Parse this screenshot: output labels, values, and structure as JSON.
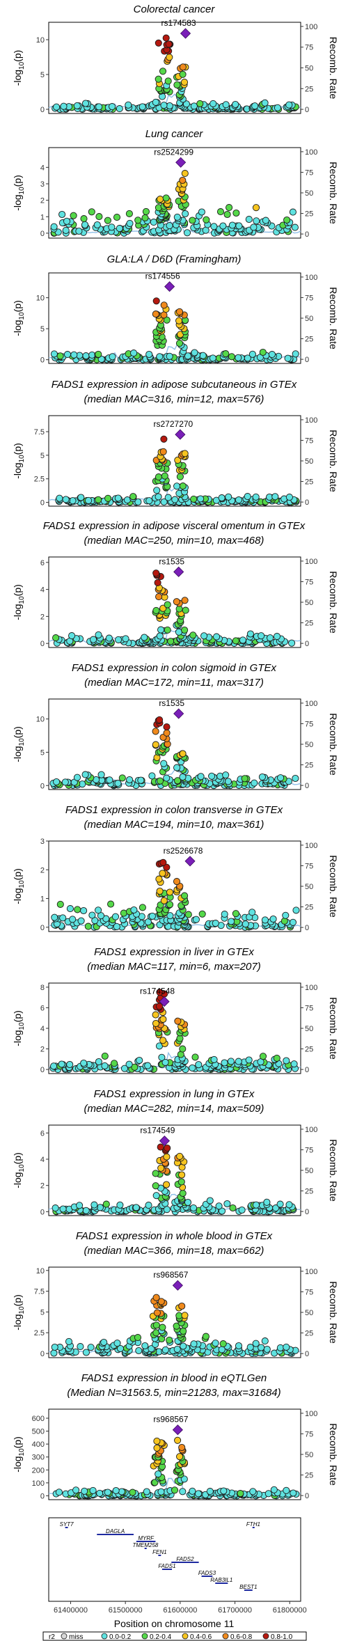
{
  "xaxis": {
    "label": "Position on chromosome 11",
    "ticks": [
      61400000,
      61500000,
      61600000,
      61700000,
      61800000
    ],
    "range": [
      61360000,
      61820000
    ]
  },
  "ylabel_left": "-log",
  "ylabel_left_sub": "10",
  "ylabel_left_tail": "(p)",
  "ylabel_right": "Recomb. Rate",
  "recomb_ticks": [
    0,
    25,
    50,
    75,
    100
  ],
  "legend": {
    "title": "r2",
    "items": [
      {
        "label": "miss",
        "color": "#d9d9d9"
      },
      {
        "label": "0.0-0.2",
        "color": "#5fe2e0"
      },
      {
        "label": "0.2-0.4",
        "color": "#55d84a"
      },
      {
        "label": "0.4-0.6",
        "color": "#f7c520"
      },
      {
        "label": "0.6-0.8",
        "color": "#f08a1c"
      },
      {
        "label": "0.8-1.0",
        "color": "#b5190f"
      }
    ]
  },
  "colors": {
    "lead": "#7a1fb8",
    "recomb_line": "#8fbfe8",
    "gene": "#1e2aa0"
  },
  "genes": [
    {
      "name": "SYT7",
      "start": 61390000,
      "end": 61395000,
      "row": 0
    },
    {
      "name": "FTH1",
      "start": 61732000,
      "end": 61735000,
      "row": 0
    },
    {
      "name": "DAGLA",
      "start": 61448000,
      "end": 61515000,
      "row": 1
    },
    {
      "name": "MYRF",
      "start": 61520000,
      "end": 61555000,
      "row": 2
    },
    {
      "name": "TMEM258",
      "start": 61535000,
      "end": 61538000,
      "row": 3
    },
    {
      "name": "FEN1",
      "start": 61560000,
      "end": 61565000,
      "row": 4
    },
    {
      "name": "FADS2",
      "start": 61584000,
      "end": 61634000,
      "row": 5
    },
    {
      "name": "FADS1",
      "start": 61567000,
      "end": 61585000,
      "row": 6
    },
    {
      "name": "FADS3",
      "start": 61639000,
      "end": 61659000,
      "row": 7
    },
    {
      "name": "RAB3IL1",
      "start": 61664000,
      "end": 61687000,
      "row": 8
    },
    {
      "name": "BEST1",
      "start": 61717000,
      "end": 61732000,
      "row": 9
    }
  ],
  "chart_data": [
    {
      "type": "scatter",
      "title": "Colorectal cancer",
      "subtitle": "",
      "lead_snp": "rs174583",
      "lead_pos": 61609750,
      "lead_y": 10.9,
      "ylim": [
        -0.6,
        12.5
      ],
      "yticks": [
        0,
        5,
        10
      ]
    },
    {
      "type": "scatter",
      "title": "Lung cancer",
      "subtitle": "",
      "lead_snp": "rs2524299",
      "lead_pos": 61601000,
      "lead_y": 4.3,
      "ylim": [
        -0.3,
        5.2
      ],
      "yticks": [
        0,
        1,
        2,
        3,
        4
      ]
    },
    {
      "type": "scatter",
      "title": "GLA:LA / D6D (Framingham)",
      "subtitle": "",
      "lead_snp": "rs174556",
      "lead_pos": 61580635,
      "lead_y": 11.8,
      "ylim": [
        -0.6,
        14.0
      ],
      "yticks": [
        0,
        5,
        10
      ]
    },
    {
      "type": "scatter",
      "title": "FADS1 expression in adipose subcutaneous in GTEx",
      "subtitle": "(median MAC=316, min=12, max=576)",
      "lead_snp": "rs2727270",
      "lead_pos": 61600000,
      "lead_y": 7.2,
      "ylim": [
        -0.4,
        9.2
      ],
      "yticks": [
        0,
        2.5,
        5,
        7.5
      ]
    },
    {
      "type": "scatter",
      "title": "FADS1 expression in adipose visceral omentum in GTEx",
      "subtitle": "(median MAC=250, min=10, max=468)",
      "lead_snp": "rs1535",
      "lead_pos": 61597212,
      "lead_y": 5.3,
      "ylim": [
        -0.3,
        6.4
      ],
      "yticks": [
        0,
        2,
        4,
        6
      ]
    },
    {
      "type": "scatter",
      "title": "FADS1 expression in colon sigmoid in GTEx",
      "subtitle": "(median MAC=172, min=11, max=317)",
      "lead_snp": "rs1535",
      "lead_pos": 61597212,
      "lead_y": 10.8,
      "ylim": [
        -0.6,
        13.0
      ],
      "yticks": [
        0,
        5,
        10
      ]
    },
    {
      "type": "scatter",
      "title": "FADS1 expression in colon transverse in GTEx",
      "subtitle": "(median MAC=194, min=10, max=361)",
      "lead_snp": "rs2526678",
      "lead_pos": 61618000,
      "lead_y": 2.3,
      "ylim": [
        -0.15,
        3.0
      ],
      "yticks": [
        0,
        1,
        2,
        3
      ]
    },
    {
      "type": "scatter",
      "title": "FADS1 expression in liver in GTEx",
      "subtitle": "(median MAC=117, min=6, max=207)",
      "lead_snp": "rs174548",
      "lead_pos": 61571000,
      "lead_y": 6.6,
      "ylim": [
        -0.4,
        8.4
      ],
      "yticks": [
        0,
        2,
        4,
        6,
        8
      ]
    },
    {
      "type": "scatter",
      "title": "FADS1 expression in lung in GTEx",
      "subtitle": "(median MAC=282, min=14, max=509)",
      "lead_snp": "rs174549",
      "lead_pos": 61571500,
      "lead_y": 5.4,
      "ylim": [
        -0.3,
        6.6
      ],
      "yticks": [
        0,
        2,
        4,
        6
      ]
    },
    {
      "type": "scatter",
      "title": "FADS1 expression in whole blood in GTEx",
      "subtitle": "(median MAC=366, min=18, max=662)",
      "lead_snp": "rs968567",
      "lead_pos": 61595564,
      "lead_y": 8.2,
      "ylim": [
        -0.5,
        10.4
      ],
      "yticks": [
        0,
        2.5,
        5,
        7.5,
        10
      ]
    },
    {
      "type": "scatter",
      "title": "FADS1 expression in blood in eQTLGen",
      "subtitle": "(Median N=31563.5, min=21283, max=31684)",
      "lead_snp": "rs968567",
      "lead_pos": 61595564,
      "lead_y": 510,
      "ylim": [
        -30,
        670
      ],
      "yticks": [
        0,
        100,
        200,
        300,
        400,
        500,
        600
      ]
    }
  ]
}
